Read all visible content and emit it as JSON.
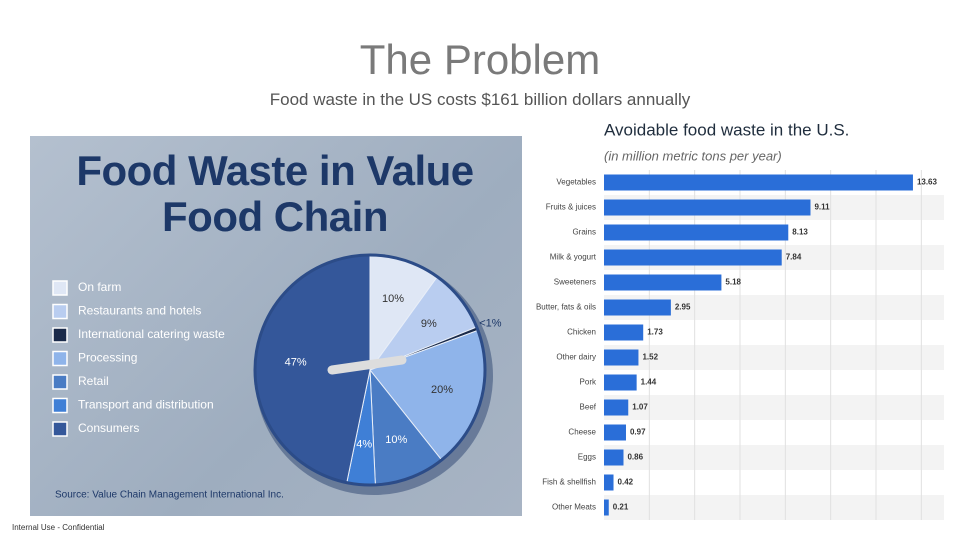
{
  "slide": {
    "title": "The Problem",
    "subtitle": "Food waste in the US costs $161 billion dollars annually",
    "footer": "Internal Use - Confidential"
  },
  "chart_data": [
    {
      "type": "pie",
      "title": "Food Waste in Value Food Chain",
      "note": "Source: Value Chain Management International Inc.",
      "categories": [
        "On farm",
        "Restaurants and hotels",
        "International catering waste",
        "Processing",
        "Retail",
        "Transport and distribution",
        "Consumers"
      ],
      "values": [
        10,
        9,
        0.5,
        20,
        10,
        4,
        47
      ],
      "value_labels": [
        "10%",
        "9%",
        "<1%",
        "20%",
        "10%",
        "4%",
        "47%"
      ],
      "colors": [
        "#dfe7f5",
        "#b9cdf0",
        "#1a2a4a",
        "#8fb4ea",
        "#4a7cc4",
        "#3f7fd6",
        "#34579a"
      ]
    },
    {
      "type": "barh",
      "title": "Avoidable food waste in the U.S.",
      "subtitle": "(in million metric tons per year)",
      "categories": [
        "Vegetables",
        "Fruits & juices",
        "Grains",
        "Milk & yogurt",
        "Sweeteners",
        "Butter, fats & oils",
        "Chicken",
        "Other dairy",
        "Pork",
        "Beef",
        "Cheese",
        "Eggs",
        "Fish & shellfish",
        "Other Meats"
      ],
      "values": [
        13.63,
        9.11,
        8.13,
        7.84,
        5.18,
        2.95,
        1.73,
        1.52,
        1.44,
        1.07,
        0.97,
        0.86,
        0.42,
        0.21
      ],
      "color": "#2a6ed8",
      "xlim": [
        0,
        15
      ],
      "xticks": [
        2,
        4,
        6,
        8,
        10,
        12,
        14
      ],
      "grid": true
    }
  ]
}
